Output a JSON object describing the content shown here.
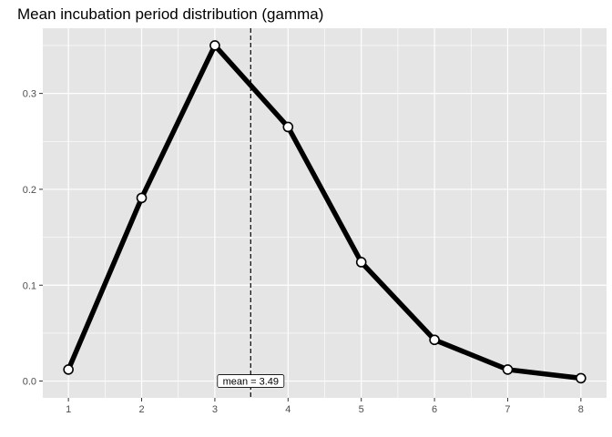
{
  "chart_data": {
    "type": "line",
    "title": "Mean incubation period distribution (gamma)",
    "xlabel": "",
    "ylabel": "",
    "x": [
      1,
      2,
      3,
      4,
      5,
      6,
      7,
      8
    ],
    "series": [
      {
        "values": [
          0.012,
          0.191,
          0.35,
          0.265,
          0.124,
          0.043,
          0.012,
          0.003
        ]
      }
    ],
    "xlim": [
      0.65,
      8.35
    ],
    "ylim": [
      -0.0175,
      0.368
    ],
    "x_ticks": [
      "1",
      "2",
      "3",
      "4",
      "5",
      "6",
      "7",
      "8"
    ],
    "y_ticks": [
      "0.0",
      "0.1",
      "0.2",
      "0.3"
    ],
    "mean_line": {
      "x": 3.49,
      "label": "mean = 3.49"
    },
    "grid": true,
    "legend": "none",
    "colors": {
      "panel": "#e5e5e5",
      "grid": "#ffffff",
      "line": "#000000",
      "point_fill": "#ffffff"
    }
  }
}
